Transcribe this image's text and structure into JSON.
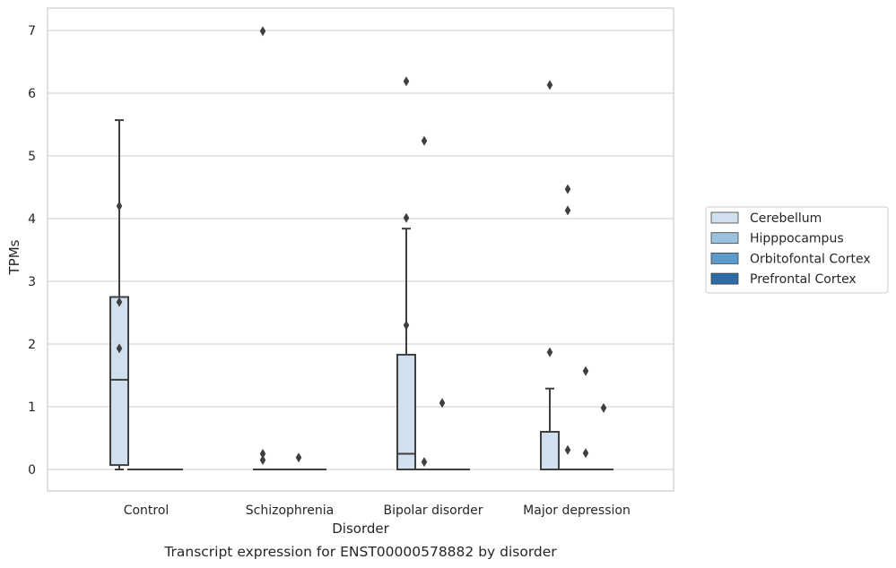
{
  "chart_data": {
    "type": "box",
    "title": "Transcript expression for ENST00000578882 by disorder",
    "xlabel": "Disorder",
    "ylabel": "TPMs",
    "categories": [
      "Control",
      "Schizophrenia",
      "Bipolar disorder",
      "Major depression"
    ],
    "ylim": [
      -0.33,
      7.35
    ],
    "yticks": [
      0,
      1,
      2,
      3,
      4,
      5,
      6,
      7
    ],
    "grid": true,
    "legend_position": "right",
    "series": [
      {
        "name": "Cerebellum",
        "color": "#d0e0ef",
        "boxes": [
          {
            "category": "Control",
            "min": 0.0,
            "q1": 0.07,
            "median": 1.43,
            "q3": 2.75,
            "max": 5.57,
            "outliers": [
              4.2,
              2.67,
              1.93
            ]
          },
          {
            "category": "Schizophrenia",
            "min": 0.0,
            "q1": 0.0,
            "median": 0.0,
            "q3": 0.0,
            "max": 0.0,
            "outliers": [
              6.99,
              0.25,
              0.15
            ]
          },
          {
            "category": "Bipolar disorder",
            "min": 0.0,
            "q1": 0.0,
            "median": 0.25,
            "q3": 1.83,
            "max": 3.84,
            "outliers": [
              6.19,
              4.01,
              2.3
            ]
          },
          {
            "category": "Major depression",
            "min": 0.0,
            "q1": 0.0,
            "median": 0.0,
            "q3": 0.6,
            "max": 1.29,
            "outliers": [
              6.13,
              1.87
            ]
          }
        ]
      },
      {
        "name": "Hipppocampus",
        "color": "#9ac2dd",
        "boxes": [
          {
            "category": "Control",
            "min": 0.0,
            "q1": 0.0,
            "median": 0.0,
            "q3": 0.0,
            "max": 0.0,
            "outliers": []
          },
          {
            "category": "Schizophrenia",
            "min": 0.0,
            "q1": 0.0,
            "median": 0.0,
            "q3": 0.0,
            "max": 0.0,
            "outliers": []
          },
          {
            "category": "Bipolar disorder",
            "min": 0.0,
            "q1": 0.0,
            "median": 0.0,
            "q3": 0.0,
            "max": 0.0,
            "outliers": [
              5.24,
              0.12
            ]
          },
          {
            "category": "Major depression",
            "min": 0.0,
            "q1": 0.0,
            "median": 0.0,
            "q3": 0.0,
            "max": 0.0,
            "outliers": [
              4.47,
              4.13,
              0.31
            ]
          }
        ]
      },
      {
        "name": "Orbitofontal Cortex",
        "color": "#5b9ac9",
        "boxes": [
          {
            "category": "Control",
            "min": 0.0,
            "q1": 0.0,
            "median": 0.0,
            "q3": 0.0,
            "max": 0.0,
            "outliers": []
          },
          {
            "category": "Schizophrenia",
            "min": 0.0,
            "q1": 0.0,
            "median": 0.0,
            "q3": 0.0,
            "max": 0.0,
            "outliers": [
              0.19
            ]
          },
          {
            "category": "Bipolar disorder",
            "min": 0.0,
            "q1": 0.0,
            "median": 0.0,
            "q3": 0.0,
            "max": 0.0,
            "outliers": [
              1.06
            ]
          },
          {
            "category": "Major depression",
            "min": 0.0,
            "q1": 0.0,
            "median": 0.0,
            "q3": 0.0,
            "max": 0.0,
            "outliers": [
              1.57,
              0.26
            ]
          }
        ]
      },
      {
        "name": "Prefrontal Cortex",
        "color": "#2b6ca9",
        "boxes": [
          {
            "category": "Control",
            "min": 0.0,
            "q1": 0.0,
            "median": 0.0,
            "q3": 0.0,
            "max": 0.0,
            "outliers": []
          },
          {
            "category": "Schizophrenia",
            "min": 0.0,
            "q1": 0.0,
            "median": 0.0,
            "q3": 0.0,
            "max": 0.0,
            "outliers": []
          },
          {
            "category": "Bipolar disorder",
            "min": 0.0,
            "q1": 0.0,
            "median": 0.0,
            "q3": 0.0,
            "max": 0.0,
            "outliers": []
          },
          {
            "category": "Major depression",
            "min": 0.0,
            "q1": 0.0,
            "median": 0.0,
            "q3": 0.0,
            "max": 0.0,
            "outliers": [
              0.98
            ]
          }
        ]
      }
    ]
  }
}
